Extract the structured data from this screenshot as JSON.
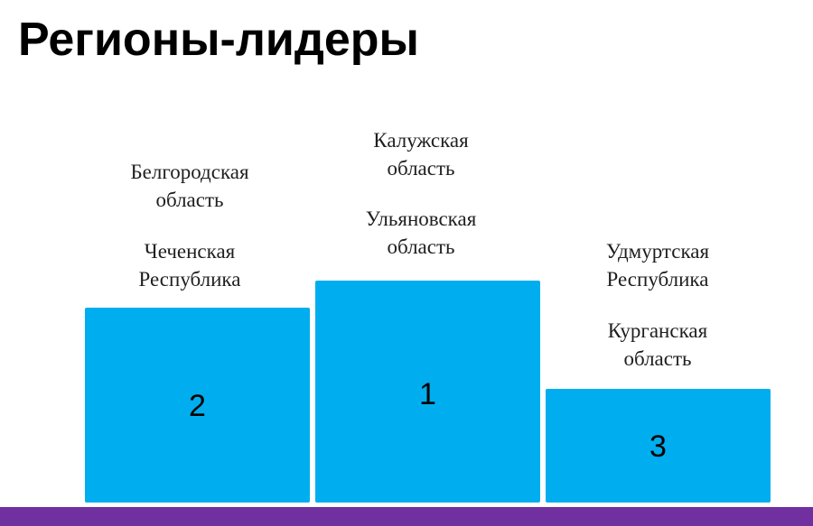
{
  "title": "Регионы-лидеры",
  "colors": {
    "block": "#00AEEF",
    "footer_bar": "#7030A0"
  },
  "podium": [
    {
      "place": "1",
      "regions": [
        {
          "line1": "Калужская",
          "line2": "область"
        },
        {
          "line1": "Ульяновская",
          "line2": "область"
        }
      ]
    },
    {
      "place": "2",
      "regions": [
        {
          "line1": "Белгородская",
          "line2": "область"
        },
        {
          "line1": "Чеченская",
          "line2": "Республика"
        }
      ]
    },
    {
      "place": "3",
      "regions": [
        {
          "line1": "Удмуртская",
          "line2": "Республика"
        },
        {
          "line1": "Курганская",
          "line2": "область"
        }
      ]
    }
  ]
}
